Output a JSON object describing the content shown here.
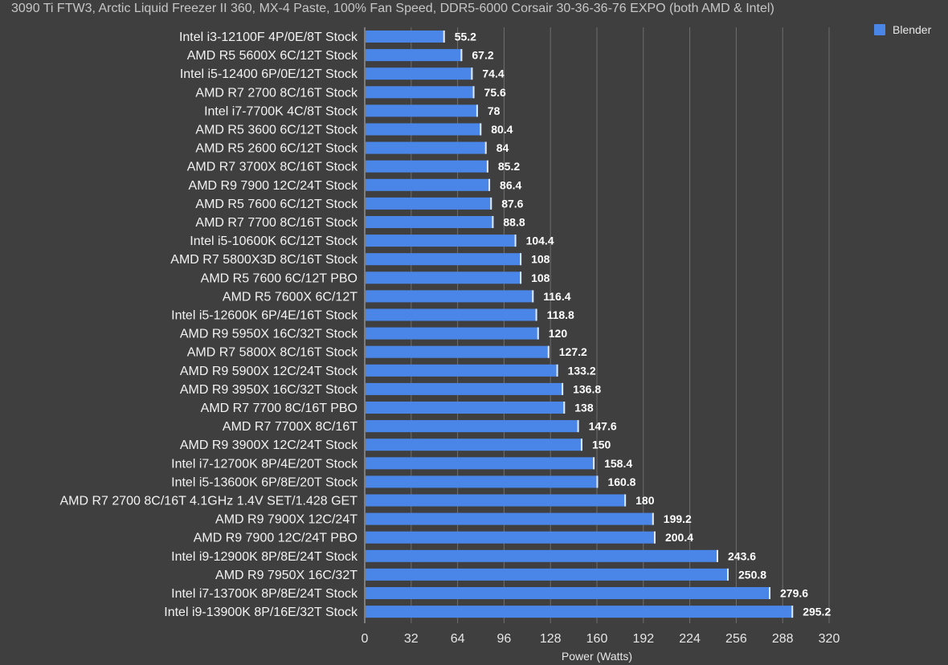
{
  "chart_data": {
    "type": "bar",
    "orientation": "horizontal",
    "title": "3090 Ti FTW3, Arctic Liquid Freezer II 360, MX-4 Paste, 100% Fan Speed, DDR5-6000 Corsair 30-36-36-76 EXPO (both AMD & Intel)",
    "xlabel": "Power (Watts)",
    "ylabel": "",
    "xlim": [
      0,
      320
    ],
    "xticks": [
      0,
      32,
      64,
      96,
      128,
      160,
      192,
      224,
      256,
      288,
      320
    ],
    "grid": true,
    "legend_position": "top-right",
    "bar_color": "#4a86e8",
    "series": [
      {
        "name": "Blender",
        "values": [
          55.2,
          67.2,
          74.4,
          75.6,
          78,
          80.4,
          84,
          85.2,
          86.4,
          87.6,
          88.8,
          104.4,
          108,
          108,
          116.4,
          118.8,
          120,
          127.2,
          133.2,
          136.8,
          138,
          147.6,
          150,
          158.4,
          160.8,
          180,
          199.2,
          200.4,
          243.6,
          250.8,
          279.6,
          295.2
        ]
      }
    ],
    "categories": [
      "Intel i3-12100F 4P/0E/8T Stock",
      "AMD R5 5600X 6C/12T Stock",
      "Intel i5-12400 6P/0E/12T Stock",
      "AMD R7 2700 8C/16T Stock",
      "Intel i7-7700K 4C/8T Stock",
      "AMD R5 3600 6C/12T Stock",
      "AMD R5 2600 6C/12T Stock",
      "AMD R7 3700X 8C/16T Stock",
      "AMD R9 7900 12C/24T Stock",
      "AMD R5 7600 6C/12T Stock",
      "AMD R7 7700 8C/16T Stock",
      "Intel i5-10600K 6C/12T Stock",
      "AMD R7 5800X3D 8C/16T Stock",
      "AMD R5 7600 6C/12T PBO",
      "AMD R5 7600X 6C/12T",
      "Intel i5-12600K 6P/4E/16T Stock",
      "AMD R9 5950X 16C/32T Stock",
      "AMD R7 5800X 8C/16T Stock",
      "AMD R9 5900X 12C/24T Stock",
      "AMD R9 3950X 16C/32T Stock",
      "AMD R7 7700 8C/16T PBO",
      "AMD R7 7700X 8C/16T",
      "AMD R9 3900X 12C/24T Stock",
      "Intel i7-12700K 8P/4E/20T Stock",
      "Intel i5-13600K 6P/8E/20T Stock",
      "AMD R7 2700 8C/16T 4.1GHz 1.4V SET/1.428 GET",
      "AMD R9 7900X 12C/24T",
      "AMD R9 7900 12C/24T PBO",
      "Intel i9-12900K 8P/8E/24T Stock",
      "AMD R9 7950X 16C/32T",
      "Intel i7-13700K 8P/8E/24T Stock",
      "Intel i9-13900K 8P/16E/32T Stock"
    ]
  }
}
